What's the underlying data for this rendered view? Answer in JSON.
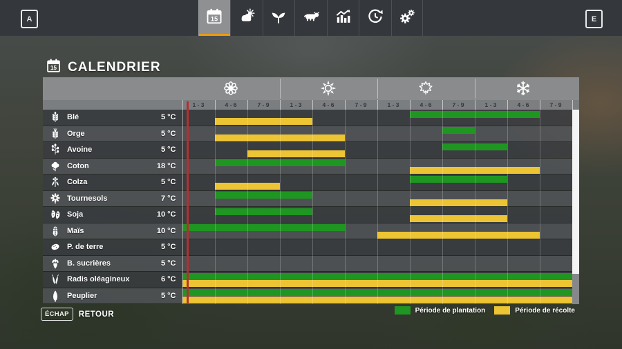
{
  "topbar": {
    "key_left": "A",
    "key_right": "E",
    "tabs": [
      {
        "name": "tab-calendar",
        "icon": "calendar-icon",
        "active": true
      },
      {
        "name": "tab-weather",
        "icon": "weather-icon",
        "active": false
      },
      {
        "name": "tab-crops",
        "icon": "sprout-icon",
        "active": false
      },
      {
        "name": "tab-animals",
        "icon": "cow-icon",
        "active": false
      },
      {
        "name": "tab-statistics",
        "icon": "stats-icon",
        "active": false
      },
      {
        "name": "tab-time",
        "icon": "time-icon",
        "active": false
      },
      {
        "name": "tab-settings",
        "icon": "gear-icon",
        "active": false
      }
    ]
  },
  "title": "CALENDRIER",
  "calendar": {
    "seasons": [
      {
        "name": "printemps",
        "icon": "spring-flower-icon"
      },
      {
        "name": "ete",
        "icon": "summer-sun-icon"
      },
      {
        "name": "automne",
        "icon": "autumn-leaf-icon"
      },
      {
        "name": "hiver",
        "icon": "winter-snowflake-icon"
      }
    ],
    "period_labels": [
      "1 - 3",
      "4 - 6",
      "7 - 9"
    ],
    "columns": 12,
    "playhead": {
      "column": 1,
      "fraction": 0.14
    },
    "crops": [
      {
        "name": "Blé",
        "temp": "5 °C",
        "icon": "wheat-icon",
        "plant": [
          8,
          11
        ],
        "harvest": [
          2,
          4
        ]
      },
      {
        "name": "Orge",
        "temp": "5 °C",
        "icon": "barley-icon",
        "plant": [
          9,
          9
        ],
        "harvest": [
          2,
          5
        ]
      },
      {
        "name": "Avoine",
        "temp": "5 °C",
        "icon": "oat-icon",
        "plant": [
          9,
          10
        ],
        "harvest": [
          3,
          5
        ]
      },
      {
        "name": "Coton",
        "temp": "18 °C",
        "icon": "cotton-icon",
        "plant": [
          2,
          5
        ],
        "harvest": [
          8,
          11
        ]
      },
      {
        "name": "Colza",
        "temp": "5 °C",
        "icon": "canola-icon",
        "plant": [
          8,
          10
        ],
        "harvest": [
          2,
          3
        ]
      },
      {
        "name": "Tournesols",
        "temp": "7 °C",
        "icon": "sunflower-icon",
        "plant": [
          2,
          4
        ],
        "harvest": [
          8,
          10
        ]
      },
      {
        "name": "Soja",
        "temp": "10 °C",
        "icon": "soybean-icon",
        "plant": [
          2,
          4
        ],
        "harvest": [
          8,
          10
        ]
      },
      {
        "name": "Maïs",
        "temp": "10 °C",
        "icon": "corn-icon",
        "plant": [
          1,
          5
        ],
        "harvest": [
          7,
          11
        ]
      },
      {
        "name": "P. de terre",
        "temp": "5 °C",
        "icon": "potato-icon",
        "plant": null,
        "harvest": null
      },
      {
        "name": "B. sucrières",
        "temp": "5 °C",
        "icon": "sugar-beet-icon",
        "plant": null,
        "harvest": null
      },
      {
        "name": "Radis oléagineux",
        "temp": "6 °C",
        "icon": "oilseed-radish-icon",
        "plant": [
          1,
          12
        ],
        "harvest": [
          1,
          12
        ]
      },
      {
        "name": "Peuplier",
        "temp": "5 °C",
        "icon": "poplar-icon",
        "plant": [
          1,
          12
        ],
        "harvest": [
          1,
          12
        ]
      }
    ],
    "legend": [
      {
        "label": "Période de plantation",
        "color": "#1f9621"
      },
      {
        "label": "Période de récolte",
        "color": "#ecc434"
      }
    ]
  },
  "footer": {
    "key": "ÉCHAP",
    "label": "RETOUR"
  },
  "colors": {
    "plant": "#1f9621",
    "harvest": "#ecc434",
    "accent": "#ee9a10",
    "playhead": "#b52f2f"
  }
}
